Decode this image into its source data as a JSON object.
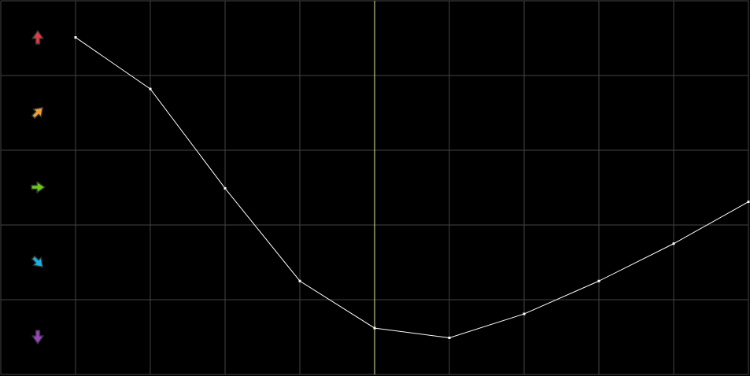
{
  "chart_data": {
    "type": "line",
    "title": "",
    "xlabel": "",
    "ylabel": "",
    "grid": true,
    "x": [
      1,
      2,
      3,
      4,
      5,
      6,
      7,
      8,
      9,
      10
    ],
    "xlim": [
      0,
      10
    ],
    "ylim": [
      0,
      5
    ],
    "series": [
      {
        "values": [
          4.51,
          3.82,
          2.49,
          1.25,
          0.62,
          0.49,
          0.81,
          1.25,
          1.75,
          2.31
        ],
        "color": "#ffffff"
      }
    ],
    "marker_line": {
      "x": 5,
      "color": "#e8e6a0"
    },
    "row_icons": [
      {
        "name": "arrow-up-icon",
        "color": "#e03a48",
        "angle": 0
      },
      {
        "name": "arrow-up-right-icon",
        "color": "#f0a030",
        "angle": 45
      },
      {
        "name": "arrow-right-icon",
        "color": "#6cc81a",
        "angle": 90
      },
      {
        "name": "arrow-down-right-icon",
        "color": "#1ab0e8",
        "angle": 135
      },
      {
        "name": "arrow-down-icon",
        "color": "#9a44c0",
        "angle": 180
      }
    ],
    "colors": {
      "background": "#000000",
      "grid": "#444444"
    }
  }
}
